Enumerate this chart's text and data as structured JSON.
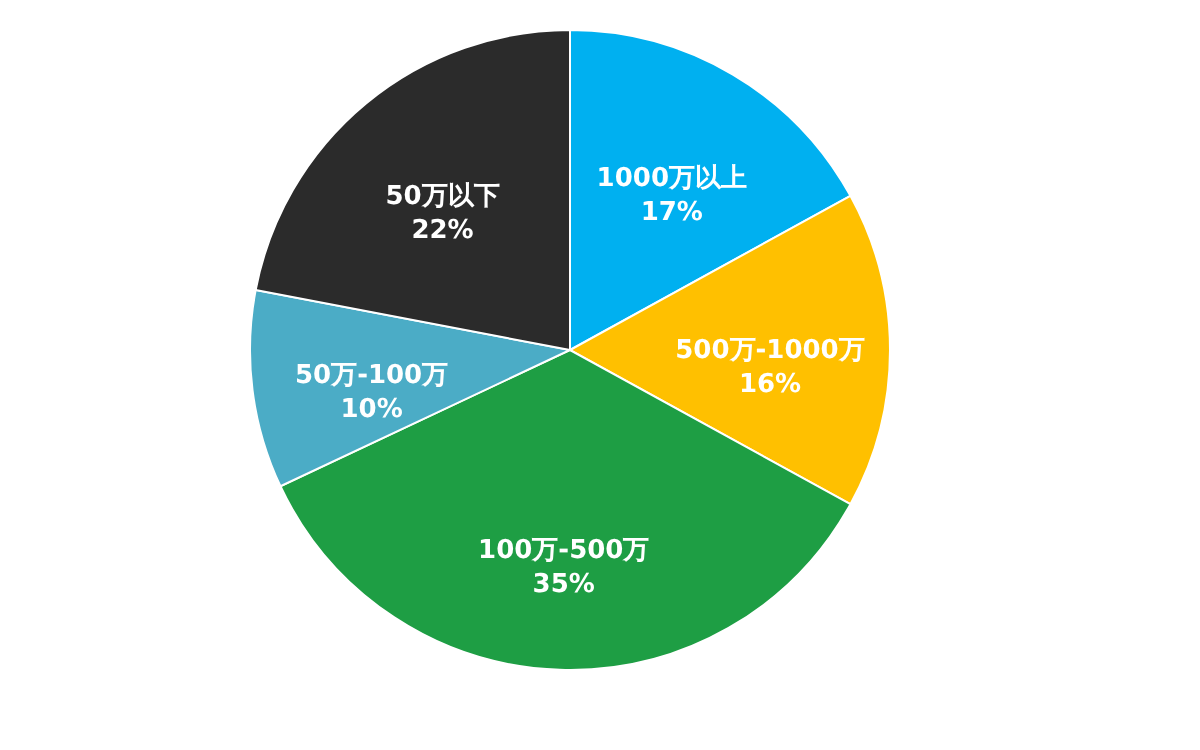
{
  "chart_data": {
    "type": "pie",
    "categories": [
      "1000万以上",
      "500万-1000万",
      "100万-500万",
      "50万-100万",
      "50万以下"
    ],
    "values": [
      17,
      16,
      35,
      10,
      22
    ],
    "value_labels": [
      "17%",
      "16%",
      "35%",
      "10%",
      "22%"
    ],
    "colors": [
      "#00b0f0",
      "#ffc000",
      "#1e9e44",
      "#4bacc6",
      "#2b2b2b"
    ],
    "legend": false
  }
}
